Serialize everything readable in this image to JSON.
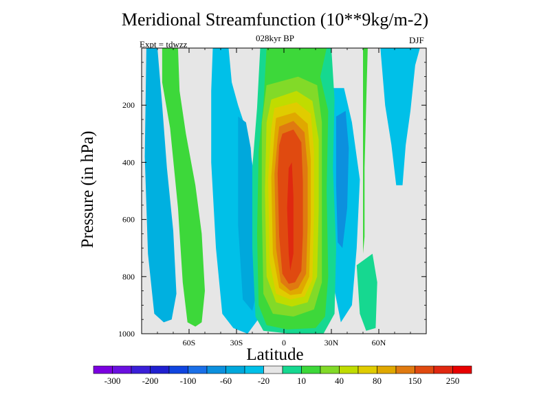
{
  "chart_data": {
    "type": "heatmap",
    "title": "Meridional Streamfunction (10**9kg/m-2)",
    "subtitle": "028kyr BP",
    "left_label": "Expt = tdwzz",
    "right_label": "DJF",
    "xlabel": "Latitude",
    "ylabel": "Pressure (in hPa)",
    "xlim": [
      -90,
      90
    ],
    "ylim": [
      1000,
      0
    ],
    "x_ticks": [
      {
        "value": -60,
        "label": "60S"
      },
      {
        "value": -30,
        "label": "30S"
      },
      {
        "value": 0,
        "label": "0"
      },
      {
        "value": 30,
        "label": "30N"
      },
      {
        "value": 60,
        "label": "60N"
      }
    ],
    "y_ticks": [
      {
        "value": 200,
        "label": "200"
      },
      {
        "value": 400,
        "label": "400"
      },
      {
        "value": 600,
        "label": "600"
      },
      {
        "value": 800,
        "label": "800"
      },
      {
        "value": 1000,
        "label": "1000"
      }
    ],
    "colorbar": {
      "colors": [
        "#7b00e0",
        "#6a10e0",
        "#3a1fd8",
        "#2020d0",
        "#1045e0",
        "#1a6fe8",
        "#0c90de",
        "#00a8dc",
        "#00c0e8",
        "#e6e6e6",
        "#16d890",
        "#3dd83a",
        "#82da28",
        "#c0dc00",
        "#e0cc00",
        "#e0a800",
        "#e07a10",
        "#e04a10",
        "#e02810",
        "#e80000"
      ],
      "label_items": [
        {
          "index": 1,
          "label": "-300"
        },
        {
          "index": 3,
          "label": "-200"
        },
        {
          "index": 5,
          "label": "-100"
        },
        {
          "index": 7,
          "label": "-60"
        },
        {
          "index": 9,
          "label": "-20"
        },
        {
          "index": 11,
          "label": "10"
        },
        {
          "index": 13,
          "label": "40"
        },
        {
          "index": 15,
          "label": "80"
        },
        {
          "index": 17,
          "label": "150"
        },
        {
          "index": 19,
          "label": "250"
        }
      ]
    },
    "features": [
      {
        "name": "mid-latitude cell SH",
        "fill": "#3dd83a",
        "points": [
          [
            -77,
            0
          ],
          [
            -67,
            0
          ],
          [
            -66,
            150
          ],
          [
            -62,
            300
          ],
          [
            -56,
            480
          ],
          [
            -52,
            650
          ],
          [
            -50,
            850
          ],
          [
            -52,
            960
          ],
          [
            -56,
            975
          ],
          [
            -61,
            960
          ],
          [
            -64,
            820
          ],
          [
            -67,
            560
          ],
          [
            -72,
            280
          ],
          [
            -77,
            120
          ]
        ]
      },
      {
        "name": "SH high-latitude blue cell",
        "fill": "#00b0e0",
        "points": [
          [
            -87,
            0
          ],
          [
            -80,
            0
          ],
          [
            -77,
            200
          ],
          [
            -74,
            420
          ],
          [
            -70,
            640
          ],
          [
            -68,
            860
          ],
          [
            -71,
            950
          ],
          [
            -76,
            960
          ],
          [
            -82,
            930
          ],
          [
            -86,
            720
          ],
          [
            -88,
            380
          ]
        ]
      },
      {
        "name": "SH negative column A",
        "fill": "#00c0e8",
        "points": [
          [
            -45,
            0
          ],
          [
            -35,
            0
          ],
          [
            -33,
            120
          ],
          [
            -29,
            200
          ],
          [
            -23,
            300
          ],
          [
            -19,
            440
          ],
          [
            -17,
            660
          ],
          [
            -15,
            940
          ],
          [
            -23,
            1000
          ],
          [
            -32,
            980
          ],
          [
            -39,
            930
          ],
          [
            -43,
            700
          ],
          [
            -46,
            400
          ],
          [
            -46,
            150
          ]
        ]
      },
      {
        "name": "SH negative column B",
        "fill": "#00a8dc",
        "points": [
          [
            -29,
            240
          ],
          [
            -24,
            260
          ],
          [
            -21,
            350
          ],
          [
            -18,
            600
          ],
          [
            -17,
            850
          ],
          [
            -20,
            920
          ],
          [
            -26,
            880
          ],
          [
            -29,
            620
          ]
        ]
      },
      {
        "name": "NH negative column",
        "fill": "#00c0e8",
        "points": [
          [
            28,
            140
          ],
          [
            38,
            140
          ],
          [
            43,
            260
          ],
          [
            48,
            460
          ],
          [
            46,
            700
          ],
          [
            43,
            900
          ],
          [
            36,
            960
          ],
          [
            31,
            820
          ],
          [
            29,
            560
          ],
          [
            28,
            320
          ]
        ]
      },
      {
        "name": "NH negative core",
        "fill": "#0c90de",
        "points": [
          [
            33,
            240
          ],
          [
            39,
            220
          ],
          [
            41,
            350
          ],
          [
            40,
            560
          ],
          [
            37,
            700
          ],
          [
            34,
            680
          ],
          [
            33,
            480
          ]
        ]
      },
      {
        "name": "NH upper green strip",
        "fill": "#3dd83a",
        "points": [
          [
            50,
            0
          ],
          [
            53,
            0
          ],
          [
            52,
            200
          ],
          [
            51,
            420
          ],
          [
            51,
            660
          ],
          [
            50,
            720
          ]
        ]
      },
      {
        "name": "NH lower green wedge",
        "fill": "#16d890",
        "points": [
          [
            46,
            760
          ],
          [
            56,
            720
          ],
          [
            59,
            820
          ],
          [
            58,
            980
          ],
          [
            52,
            990
          ],
          [
            48,
            930
          ]
        ]
      },
      {
        "name": "NH polar column",
        "fill": "#00c0e8",
        "points": [
          [
            61,
            0
          ],
          [
            86,
            0
          ],
          [
            83,
            60
          ],
          [
            80,
            220
          ],
          [
            77,
            340
          ],
          [
            75,
            480
          ],
          [
            71,
            480
          ],
          [
            68,
            340
          ],
          [
            64,
            200
          ]
        ]
      },
      {
        "name": "streamfunction ring 1",
        "fill": "#16d890",
        "points": [
          [
            -15,
            0
          ],
          [
            30,
            0
          ],
          [
            32,
            180
          ],
          [
            31,
            420
          ],
          [
            33,
            700
          ],
          [
            32,
            930
          ],
          [
            25,
            1000
          ],
          [
            4,
            1000
          ],
          [
            -13,
            990
          ],
          [
            -18,
            940
          ],
          [
            -20,
            700
          ],
          [
            -20,
            420
          ],
          [
            -17,
            210
          ]
        ]
      },
      {
        "name": "streamfunction ring 2",
        "fill": "#3dd83a",
        "points": [
          [
            -11,
            0
          ],
          [
            27,
            0
          ],
          [
            23,
            100
          ],
          [
            28,
            220
          ],
          [
            27,
            500
          ],
          [
            28,
            800
          ],
          [
            26,
            940
          ],
          [
            20,
            980
          ],
          [
            2,
            985
          ],
          [
            -11,
            970
          ],
          [
            -16,
            900
          ],
          [
            -17,
            650
          ],
          [
            -16,
            360
          ],
          [
            -13,
            200
          ]
        ]
      },
      {
        "name": "streamfunction ring 3",
        "fill": "#82da28",
        "points": [
          [
            -11,
            130
          ],
          [
            9,
            100
          ],
          [
            21,
            130
          ],
          [
            24,
            260
          ],
          [
            24,
            520
          ],
          [
            24,
            820
          ],
          [
            19,
            915
          ],
          [
            6,
            940
          ],
          [
            -7,
            930
          ],
          [
            -13,
            860
          ],
          [
            -14,
            560
          ],
          [
            -14,
            260
          ]
        ]
      },
      {
        "name": "streamfunction ring 4",
        "fill": "#c0dc00",
        "points": [
          [
            -8,
            180
          ],
          [
            8,
            150
          ],
          [
            18,
            185
          ],
          [
            22,
            320
          ],
          [
            22,
            560
          ],
          [
            21,
            800
          ],
          [
            15,
            890
          ],
          [
            5,
            905
          ],
          [
            -5,
            890
          ],
          [
            -11,
            800
          ],
          [
            -12,
            500
          ],
          [
            -11,
            260
          ]
        ]
      },
      {
        "name": "streamfunction ring 5",
        "fill": "#e0cc00",
        "points": [
          [
            -6,
            210
          ],
          [
            8,
            190
          ],
          [
            17,
            230
          ],
          [
            19,
            360
          ],
          [
            19,
            580
          ],
          [
            18,
            810
          ],
          [
            13,
            870
          ],
          [
            4,
            880
          ],
          [
            -5,
            860
          ],
          [
            -9,
            750
          ],
          [
            -10,
            460
          ],
          [
            -8,
            280
          ]
        ]
      },
      {
        "name": "streamfunction ring 6",
        "fill": "#e0a800",
        "points": [
          [
            -5,
            245
          ],
          [
            7,
            225
          ],
          [
            15,
            265
          ],
          [
            17,
            390
          ],
          [
            17,
            600
          ],
          [
            16,
            800
          ],
          [
            11,
            860
          ],
          [
            4,
            865
          ],
          [
            -3,
            840
          ],
          [
            -7,
            720
          ],
          [
            -8,
            450
          ],
          [
            -6,
            300
          ]
        ]
      },
      {
        "name": "streamfunction ring 7",
        "fill": "#e07a10",
        "points": [
          [
            -3,
            275
          ],
          [
            6,
            255
          ],
          [
            13,
            295
          ],
          [
            15,
            420
          ],
          [
            15,
            620
          ],
          [
            14,
            790
          ],
          [
            9,
            840
          ],
          [
            4,
            850
          ],
          [
            -2,
            820
          ],
          [
            -5,
            700
          ],
          [
            -6,
            440
          ],
          [
            -4,
            320
          ]
        ]
      },
      {
        "name": "streamfunction core",
        "fill": "#e04a10",
        "points": [
          [
            -1,
            300
          ],
          [
            6,
            285
          ],
          [
            11,
            330
          ],
          [
            12,
            470
          ],
          [
            12,
            650
          ],
          [
            11,
            780
          ],
          [
            7,
            820
          ],
          [
            3,
            825
          ],
          [
            -1,
            790
          ],
          [
            -3,
            660
          ],
          [
            -4,
            440
          ],
          [
            -3,
            340
          ]
        ]
      },
      {
        "name": "streamfunction peak",
        "fill": "#e02810",
        "points": [
          [
            3,
            420
          ],
          [
            5,
            400
          ],
          [
            6,
            520
          ],
          [
            6,
            720
          ],
          [
            4,
            780
          ],
          [
            3,
            720
          ],
          [
            2,
            560
          ]
        ]
      }
    ]
  }
}
